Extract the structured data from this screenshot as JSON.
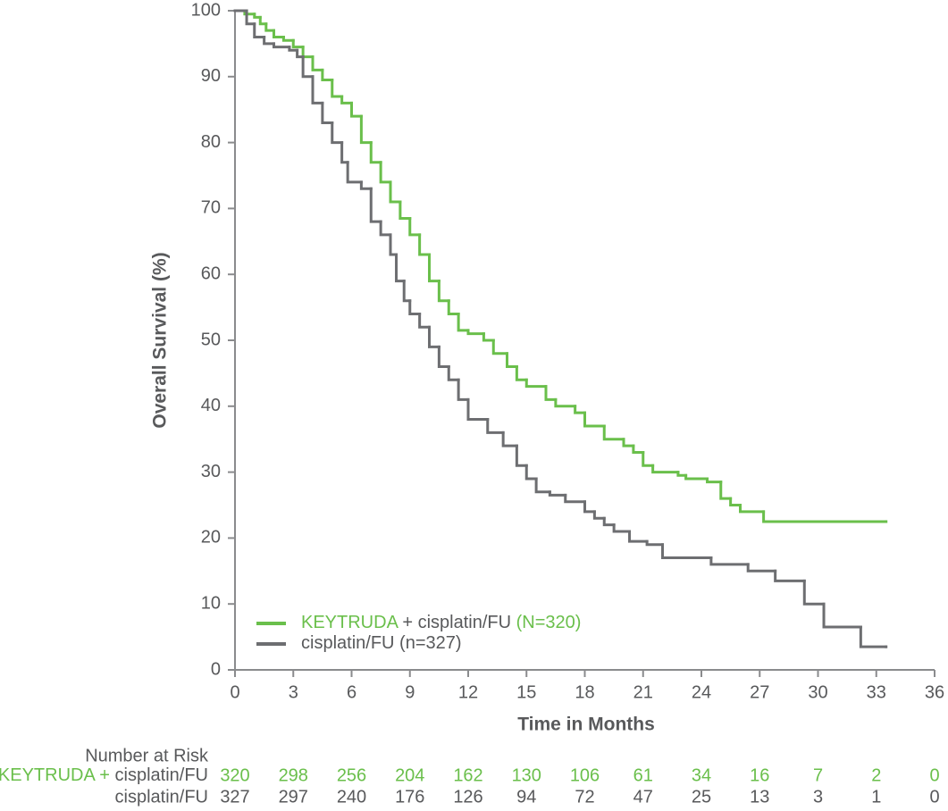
{
  "chart_data": {
    "type": "step",
    "x_label": "Time in Months",
    "y_label": "Overall Survival (%)",
    "xlim": [
      0,
      36
    ],
    "xticks": [
      0,
      3,
      6,
      9,
      12,
      15,
      18,
      21,
      24,
      27,
      30,
      33,
      36
    ],
    "ylim": [
      0,
      100
    ],
    "yticks": [
      0,
      10,
      20,
      30,
      40,
      50,
      60,
      70,
      80,
      90,
      100
    ],
    "series": [
      {
        "name": "KEYTRUDA + cisplatin/FU (N=320)",
        "color": "#6abf4b",
        "x": [
          0,
          0.5,
          1,
          1.3,
          1.6,
          2,
          2.5,
          3,
          3.5,
          4,
          4.5,
          5,
          5.5,
          6,
          6.5,
          7,
          7.5,
          8,
          8.5,
          9,
          9.5,
          10,
          10.5,
          11,
          11.5,
          12,
          12.8,
          13.3,
          14,
          14.5,
          15,
          16,
          16.5,
          17.5,
          18,
          19,
          20,
          20.5,
          21,
          21.5,
          22.8,
          23.2,
          24.3,
          25,
          25.5,
          26,
          27.2,
          33.5
        ],
        "values": [
          100,
          99.5,
          99,
          98,
          97,
          96,
          95.5,
          94.5,
          93,
          91,
          89.5,
          87,
          86,
          84,
          80,
          77,
          74,
          71,
          68.5,
          66,
          63,
          59,
          56,
          54,
          51.5,
          51,
          50,
          48,
          46,
          44,
          43,
          41,
          40,
          39,
          37,
          35,
          34,
          33,
          31,
          30,
          29.5,
          29,
          28.5,
          26,
          25,
          24,
          22.5,
          22.5
        ]
      },
      {
        "name": "cisplatin/FU (n=327)",
        "color": "#6d6e71",
        "x": [
          0,
          0.6,
          1,
          1.5,
          2,
          2.8,
          3.2,
          3.5,
          4,
          4.5,
          5,
          5.5,
          5.8,
          6.5,
          7,
          7.5,
          8,
          8.3,
          8.7,
          9,
          9.5,
          10,
          10.5,
          11,
          11.5,
          12,
          13,
          13.8,
          14.5,
          15,
          15.5,
          16.2,
          17,
          18,
          18.5,
          19,
          19.5,
          20.3,
          21.2,
          22,
          24.5,
          26.4,
          27.8,
          29.3,
          30.3,
          32.2,
          33.5
        ],
        "values": [
          100,
          98,
          96,
          95,
          94.5,
          94,
          93,
          90,
          86,
          83,
          80,
          77,
          74,
          73,
          68,
          66,
          63,
          59,
          56,
          54,
          52,
          49,
          46,
          44,
          41,
          38,
          36,
          34,
          31,
          29,
          27,
          26.5,
          25.5,
          24,
          23,
          22,
          21,
          19.5,
          19,
          17,
          16,
          15,
          13.5,
          10,
          6.5,
          3.5,
          3.5
        ]
      }
    ],
    "risk_table": {
      "title": "Number at Risk",
      "rows": [
        {
          "label": "KEYTRUDA + cisplatin/FU",
          "color": "#6abf4b",
          "values": [
            320,
            298,
            256,
            204,
            162,
            130,
            106,
            61,
            34,
            16,
            7,
            2,
            0
          ]
        },
        {
          "label": "cisplatin/FU",
          "color": "#58595b",
          "values": [
            327,
            297,
            240,
            176,
            126,
            94,
            72,
            47,
            25,
            13,
            3,
            1,
            0
          ]
        }
      ]
    }
  }
}
